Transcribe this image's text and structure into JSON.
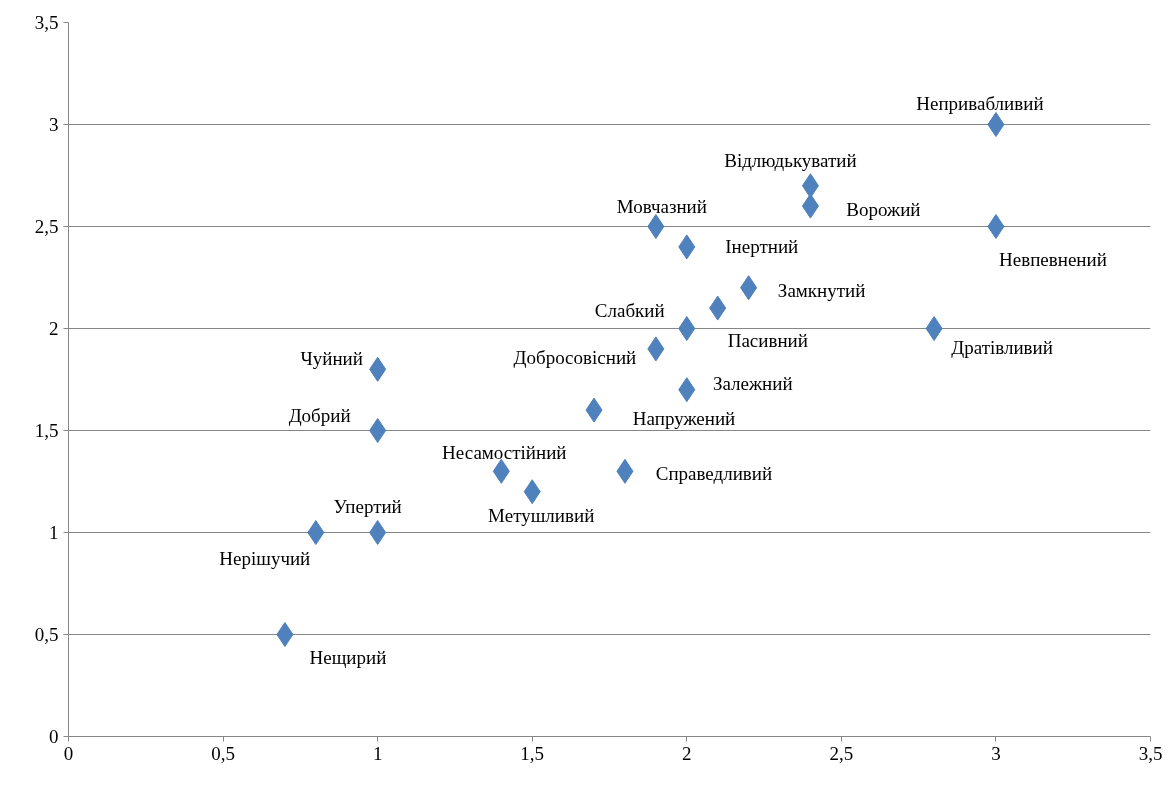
{
  "chart_data": {
    "type": "scatter",
    "color": "#4f81bd",
    "marker": "diamond",
    "grid": "y",
    "x": [
      3,
      2.4,
      2.4,
      3,
      1.9,
      2,
      2.2,
      2.1,
      2,
      2.8,
      1.9,
      1,
      2,
      1.7,
      1,
      1.4,
      1.8,
      1.5,
      1,
      0.8,
      0.7
    ],
    "values": [
      3,
      2.7,
      2.6,
      2.5,
      2.5,
      2.4,
      2.2,
      2.1,
      2,
      2,
      1.9,
      1.8,
      1.7,
      1.6,
      1.5,
      1.3,
      1.3,
      1.2,
      1,
      1,
      0.5
    ],
    "xlim": [
      0,
      3.5
    ],
    "ylim": [
      0,
      3.5
    ],
    "xticks": [
      0,
      {
        "value": 0.5,
        "label": "0,5"
      },
      1,
      {
        "value": 1.5,
        "label": "1,5"
      },
      2,
      {
        "value": 2.5,
        "label": "2,5"
      },
      3,
      {
        "value": 3.5,
        "label": "3,5"
      }
    ],
    "yticks": [
      0,
      {
        "value": 0.5,
        "label": "0,5"
      },
      1,
      {
        "value": 1.5,
        "label": "1,5"
      },
      2,
      {
        "value": 2.5,
        "label": "2,5"
      },
      3,
      {
        "value": 3.5,
        "label": "3,5"
      }
    ],
    "annotations": [
      {
        "text": "Непривабливий",
        "x": 3,
        "y": 3
      },
      {
        "text": "Відлюдькуватий",
        "x": 2.4,
        "y": 2.7
      },
      {
        "text": "Ворожий",
        "x": 2.4,
        "y": 2.6
      },
      {
        "text": "Невпевнений",
        "x": 3,
        "y": 2.5
      },
      {
        "text": "Мовчазний",
        "x": 1.9,
        "y": 2.5
      },
      {
        "text": "Інертний",
        "x": 2,
        "y": 2.4
      },
      {
        "text": "Замкнутий",
        "x": 2.2,
        "y": 2.2
      },
      {
        "text": "Слабкий",
        "x": 2.1,
        "y": 2.1
      },
      {
        "text": "Пасивний",
        "x": 2,
        "y": 2
      },
      {
        "text": "Дратівливий",
        "x": 2.8,
        "y": 2
      },
      {
        "text": "Добросовісний",
        "x": 1.9,
        "y": 1.9
      },
      {
        "text": "Чуйний",
        "x": 1,
        "y": 1.8
      },
      {
        "text": "Залежний",
        "x": 2,
        "y": 1.7
      },
      {
        "text": "Напружений",
        "x": 1.7,
        "y": 1.6
      },
      {
        "text": "Добрий",
        "x": 1,
        "y": 1.5
      },
      {
        "text": "Несамостійний",
        "x": 1.4,
        "y": 1.3
      },
      {
        "text": "Справедливий",
        "x": 1.8,
        "y": 1.3
      },
      {
        "text": "Метушливий",
        "x": 1.5,
        "y": 1.2
      },
      {
        "text": "Упертий",
        "x": 1,
        "y": 1
      },
      {
        "text": "Нерішучий",
        "x": 0.8,
        "y": 1
      },
      {
        "text": "Нещирий",
        "x": 0.7,
        "y": 0.5
      }
    ]
  }
}
